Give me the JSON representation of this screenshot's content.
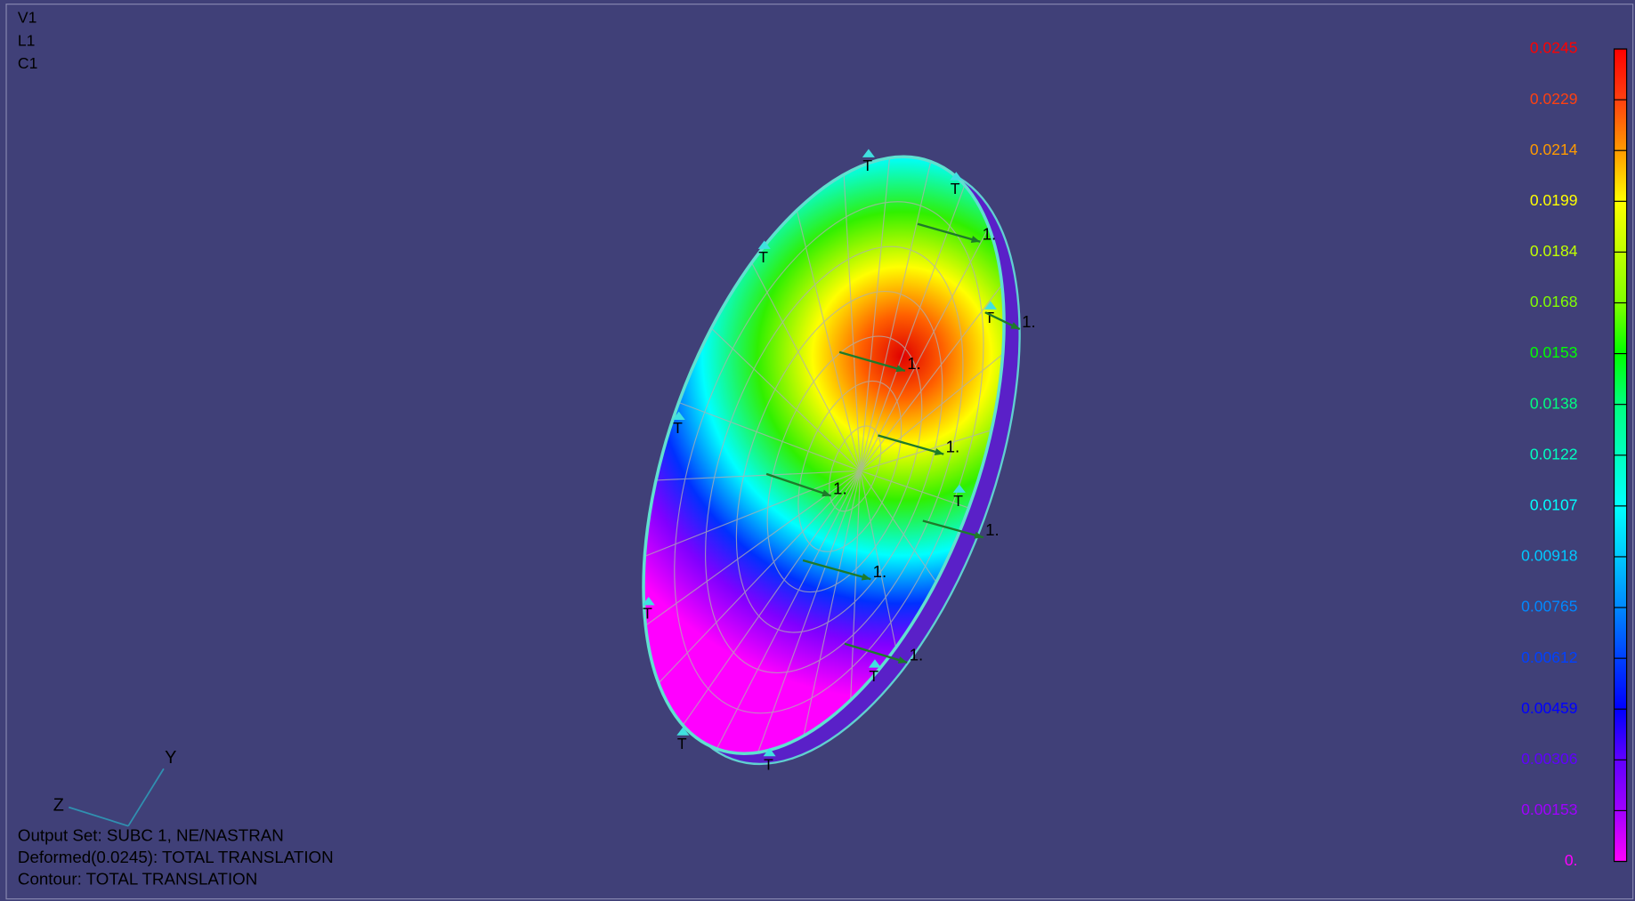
{
  "viewport": {
    "lines": [
      "V1",
      "L1",
      "C1"
    ]
  },
  "legend": {
    "labels": [
      "0.0245",
      "0.0229",
      "0.0214",
      "0.0199",
      "0.0184",
      "0.0168",
      "0.0153",
      "0.0138",
      "0.0122",
      "0.0107",
      "0.00918",
      "0.00765",
      "0.00612",
      "0.00459",
      "0.00306",
      "0.00153",
      "0."
    ],
    "colors": [
      "#ff0000",
      "#ff4010",
      "#ff9a00",
      "#ffff00",
      "#c0ff00",
      "#80ff00",
      "#00ff00",
      "#00ff80",
      "#00ffc0",
      "#00ffff",
      "#00c8ff",
      "#0088ff",
      "#0040ff",
      "#0000ff",
      "#6000ff",
      "#a000ff",
      "#ff00ff"
    ]
  },
  "model": {
    "constraint_labels": [
      "T",
      "T",
      "T",
      "T",
      "T",
      "T",
      "T",
      "T",
      "T",
      "T"
    ],
    "load_labels": [
      "1.",
      "1.",
      "1.",
      "1.",
      "1.",
      "1.",
      "1.",
      "1."
    ]
  },
  "triad": {
    "y_label": "Y",
    "z_label": "Z"
  },
  "footer": {
    "lines": [
      "Output Set: SUBC 1, NE/NASTRAN",
      "Deformed(0.0245): TOTAL TRANSLATION",
      "Contour: TOTAL TRANSLATION"
    ]
  }
}
